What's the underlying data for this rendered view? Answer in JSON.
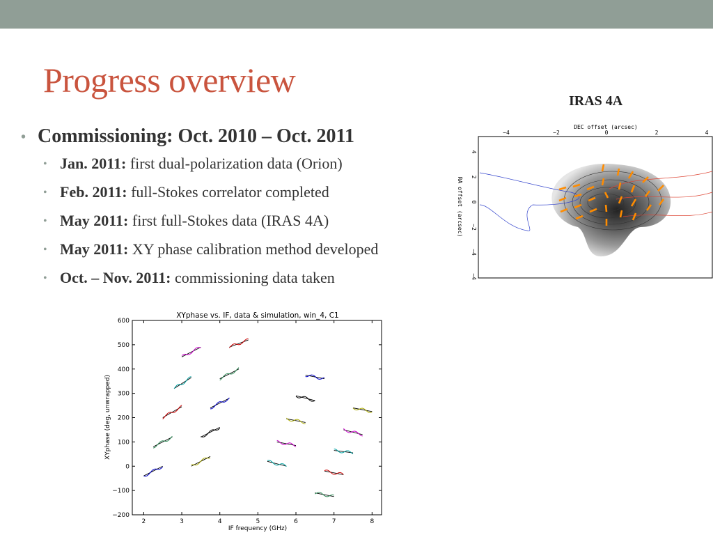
{
  "slide": {
    "title": "Progress overview",
    "bullets": {
      "main": "Commissioning: Oct. 2010 – Oct. 2011",
      "items": [
        {
          "bold": "Jan. 2011:",
          "text": " first dual-polarization data (Orion)"
        },
        {
          "bold": "Feb. 2011:",
          "text": " full-Stokes correlator completed"
        },
        {
          "bold": "May 2011:",
          "text": " first full-Stokes data (IRAS 4A)"
        },
        {
          "bold": "May 2011:",
          "text": " XY phase calibration method developed"
        },
        {
          "bold": "Oct. – Nov. 2011:",
          "text": " commissioning data taken"
        }
      ]
    }
  },
  "colors": {
    "topbar": "#909e96",
    "title": "#c9543e",
    "vectors": "#ff8c00"
  },
  "map_figure": {
    "caption": "IRAS 4A",
    "xlabel": "DEC offset (arcsec)",
    "ylabel": "RA offset (arcsec)",
    "x_ticks": [
      "−4",
      "−2",
      "0",
      "2",
      "4"
    ],
    "y_ticks": [
      "4",
      "2",
      "0",
      "−2",
      "−4"
    ]
  },
  "chart_data": {
    "type": "scatter",
    "title": "XYphase vs. IF, data & simulation, win_4, C1",
    "xlabel": "IF frequency (GHz)",
    "ylabel": "XYphase (deg, unwrapped)",
    "xlim": [
      1.7,
      8.25
    ],
    "ylim": [
      -200,
      600
    ],
    "x_ticks": [
      "2",
      "3",
      "4",
      "5",
      "6",
      "7",
      "8"
    ],
    "y_ticks": [
      "−200",
      "−100",
      "0",
      "100",
      "200",
      "300",
      "400",
      "500",
      "600"
    ],
    "segments": [
      {
        "color": "#0000cc",
        "x0": 2.0,
        "y0": -40,
        "x1": 2.5,
        "y1": 0
      },
      {
        "color": "#2e8b57",
        "x0": 2.25,
        "y0": 80,
        "x1": 2.75,
        "y1": 120
      },
      {
        "color": "#cc0000",
        "x0": 2.5,
        "y0": 200,
        "x1": 3.0,
        "y1": 245
      },
      {
        "color": "#00a0a0",
        "x0": 2.8,
        "y0": 320,
        "x1": 3.25,
        "y1": 365
      },
      {
        "color": "#cc00cc",
        "x0": 3.0,
        "y0": 450,
        "x1": 3.5,
        "y1": 490
      },
      {
        "color": "#aaaa00",
        "x0": 3.25,
        "y0": 0,
        "x1": 3.75,
        "y1": 40
      },
      {
        "color": "#000000",
        "x0": 3.5,
        "y0": 120,
        "x1": 4.0,
        "y1": 160
      },
      {
        "color": "#0000cc",
        "x0": 3.75,
        "y0": 240,
        "x1": 4.25,
        "y1": 280
      },
      {
        "color": "#2e8b57",
        "x0": 4.0,
        "y0": 360,
        "x1": 4.5,
        "y1": 400
      },
      {
        "color": "#cc0000",
        "x0": 4.25,
        "y0": 490,
        "x1": 4.75,
        "y1": 520
      },
      {
        "color": "#00a0a0",
        "x0": 5.25,
        "y0": 20,
        "x1": 5.75,
        "y1": 0
      },
      {
        "color": "#cc00cc",
        "x0": 5.5,
        "y0": 100,
        "x1": 6.0,
        "y1": 85
      },
      {
        "color": "#aaaa00",
        "x0": 5.75,
        "y0": 195,
        "x1": 6.25,
        "y1": 180
      },
      {
        "color": "#000000",
        "x0": 6.0,
        "y0": 290,
        "x1": 6.5,
        "y1": 270
      },
      {
        "color": "#0000cc",
        "x0": 6.25,
        "y0": 375,
        "x1": 6.75,
        "y1": 360
      },
      {
        "color": "#2e8b57",
        "x0": 6.5,
        "y0": -110,
        "x1": 7.0,
        "y1": -125
      },
      {
        "color": "#cc0000",
        "x0": 6.75,
        "y0": -20,
        "x1": 7.25,
        "y1": -35
      },
      {
        "color": "#00a0a0",
        "x0": 7.0,
        "y0": 65,
        "x1": 7.5,
        "y1": 55
      },
      {
        "color": "#cc00cc",
        "x0": 7.25,
        "y0": 150,
        "x1": 7.75,
        "y1": 130
      },
      {
        "color": "#aaaa00",
        "x0": 7.5,
        "y0": 240,
        "x1": 8.0,
        "y1": 225
      }
    ]
  }
}
